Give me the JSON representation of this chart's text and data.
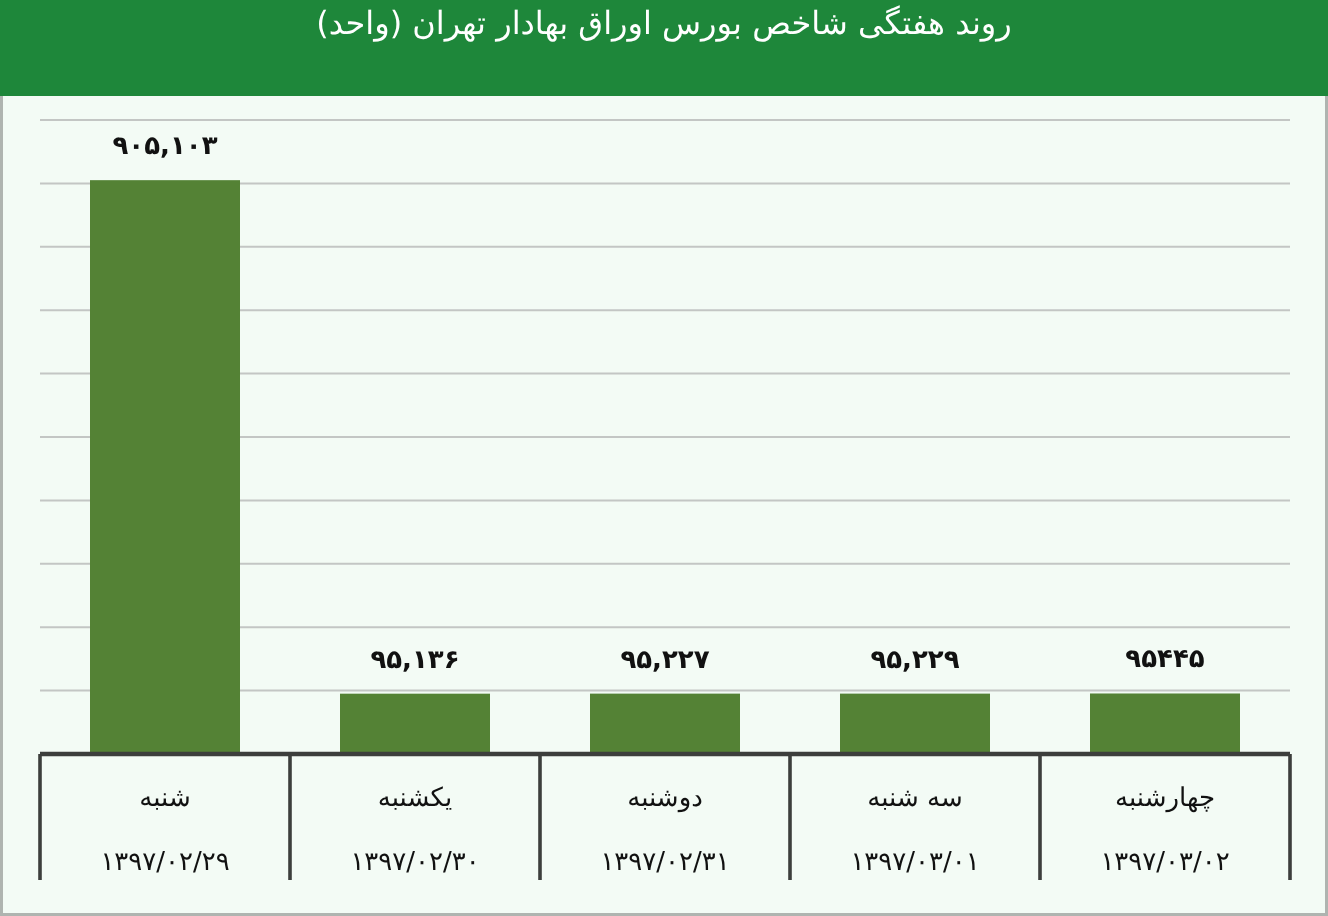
{
  "chart_data": {
    "type": "bar",
    "title": "روند هفتگی شاخص بورس اوراق بهادار تهران (واحد)",
    "categories": [
      "شنبه\n۱۳۹۷/۰۲/۲۹",
      "یکشنبه\n۱۳۹۷/۰۲/۳۰",
      "دوشنبه\n۱۳۹۷/۰۲/۳۱",
      "سه شنبه\n۱۳۹۷/۰۳/۰۱",
      "چهارشنبه\n۱۳۹۷/۰۳/۰۲"
    ],
    "values": [
      905103,
      95136,
      95227,
      95229,
      95445
    ],
    "value_labels": [
      "۹۰۵,۱۰۳",
      "۹۵,۱۳۶",
      "۹۵,۲۲۷",
      "۹۵,۲۲۹",
      "۹۵۴۴۵"
    ],
    "color": "#548235",
    "ylim": [
      0,
      1000000
    ],
    "yticks": [
      {
        "value": 0,
        "label": null
      },
      {
        "value": 100000,
        "label": null
      },
      {
        "value": 200000,
        "label": null
      },
      {
        "value": 300000,
        "label": null
      },
      {
        "value": 400000,
        "label": null
      },
      {
        "value": 500000,
        "label": null
      },
      {
        "value": 600000,
        "label": null
      },
      {
        "value": 700000,
        "label": null
      },
      {
        "value": 800000,
        "label": null
      },
      {
        "value": 900000,
        "label": null
      },
      {
        "value": 1000000,
        "label": null
      }
    ],
    "grid": "y",
    "tick_labels": "x"
  }
}
